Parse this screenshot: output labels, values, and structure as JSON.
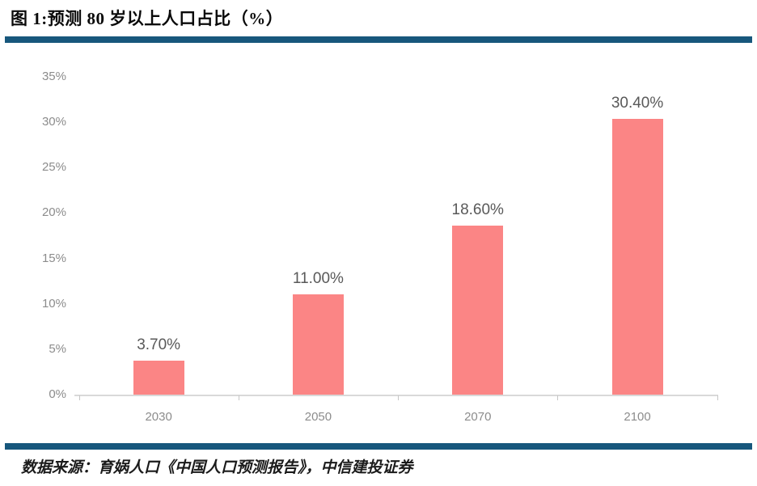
{
  "header": {
    "title": "图 1:预测 80 岁以上人口占比（%）"
  },
  "footer": {
    "source": "数据来源：育娲人口《中国人口预测报告》，中信建投证券"
  },
  "colors": {
    "accent_blue": "#17577c",
    "bar": "#fb8585",
    "axis_line": "#d9d9d9",
    "tick_label": "#8c8c8c",
    "value_label": "#595959"
  },
  "chart_data": {
    "type": "bar",
    "title": "预测 80 岁以上人口占比（%）",
    "categories": [
      "2030",
      "2050",
      "2070",
      "2100"
    ],
    "values": [
      3.7,
      11.0,
      18.6,
      30.4
    ],
    "value_labels": [
      "3.70%",
      "11.00%",
      "18.60%",
      "30.40%"
    ],
    "xlabel": "",
    "ylabel": "",
    "ylim": [
      0,
      35
    ],
    "y_tick_step": 5,
    "y_tick_labels": [
      "0%",
      "5%",
      "10%",
      "15%",
      "20%",
      "25%",
      "30%",
      "35%"
    ],
    "grid": false,
    "legend": false,
    "bar_color": "#fb8585"
  }
}
